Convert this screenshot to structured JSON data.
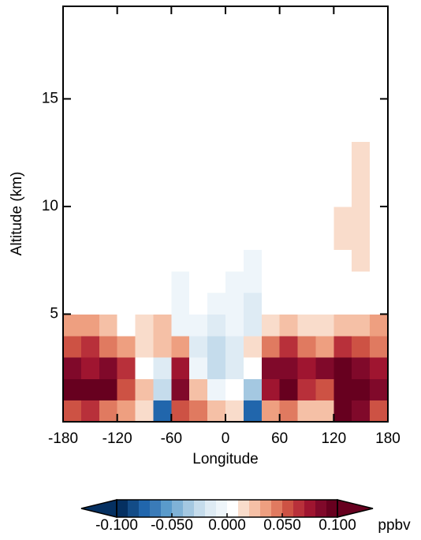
{
  "chart_data": {
    "type": "heatmap",
    "x_label": "Longitude",
    "y_label": "Altitude (km)",
    "xlim": [
      -180,
      180
    ],
    "ylim": [
      0,
      19.3
    ],
    "xticks": [
      -180,
      -120,
      -60,
      0,
      60,
      120,
      180
    ],
    "yticks": [
      5,
      10,
      15
    ],
    "x": [
      -170,
      -150,
      -130,
      -110,
      -90,
      -70,
      -50,
      -30,
      -10,
      10,
      30,
      50,
      70,
      90,
      110,
      130,
      150,
      170
    ],
    "y": [
      0.5,
      1.5,
      2.5,
      3.5,
      4.5,
      5.5,
      6.5,
      7.5,
      8.5,
      9.5,
      10.5,
      11.5,
      12.5
    ],
    "values": [
      [
        0.05,
        0.06,
        0.04,
        0.03,
        0.01,
        -0.08,
        0.05,
        0.04,
        0.02,
        0.01,
        -0.08,
        0.03,
        0.04,
        0.02,
        0.02,
        0.09,
        0.08,
        0.05
      ],
      [
        0.09,
        0.1,
        0.09,
        0.05,
        0.02,
        -0.03,
        0.08,
        0.02,
        -0.01,
        0,
        -0.04,
        0.07,
        0.09,
        0.06,
        0.05,
        0.1,
        0.09,
        0.08
      ],
      [
        0.08,
        0.07,
        0.08,
        0.06,
        0,
        -0.02,
        0.07,
        -0.01,
        -0.03,
        -0.02,
        0,
        0.08,
        0.08,
        0.07,
        0.08,
        0.09,
        0.08,
        0.07
      ],
      [
        0.05,
        0.06,
        0.04,
        0.03,
        0.01,
        0.02,
        0.03,
        -0.02,
        -0.03,
        -0.02,
        0.01,
        0.04,
        0.06,
        0.04,
        0.03,
        0.06,
        0.05,
        0.04
      ],
      [
        0.03,
        0.03,
        0.02,
        0,
        0.01,
        0.02,
        -0.01,
        -0.01,
        -0.02,
        -0.01,
        -0.02,
        0.01,
        0.02,
        0.01,
        0.01,
        0.02,
        0.02,
        0.03
      ],
      [
        0,
        0,
        0,
        0,
        0,
        0,
        -0.01,
        0,
        -0.01,
        -0.01,
        -0.02,
        0,
        0,
        0,
        0,
        0,
        0,
        0
      ],
      [
        0,
        0,
        0,
        0,
        0,
        0,
        -0.01,
        0,
        0,
        -0.01,
        -0.01,
        0,
        0,
        0,
        0,
        0,
        0,
        0
      ],
      [
        0,
        0,
        0,
        0,
        0,
        0,
        0,
        0,
        0,
        0,
        -0.01,
        0,
        0,
        0,
        0,
        0,
        0.01,
        0
      ],
      [
        0,
        0,
        0,
        0,
        0,
        0,
        0,
        0,
        0,
        0,
        0,
        0,
        0,
        0,
        0,
        0.01,
        0.01,
        0
      ],
      [
        0,
        0,
        0,
        0,
        0,
        0,
        0,
        0,
        0,
        0,
        0,
        0,
        0,
        0,
        0,
        0.01,
        0.01,
        0
      ],
      [
        0,
        0,
        0,
        0,
        0,
        0,
        0,
        0,
        0,
        0,
        0,
        0,
        0,
        0,
        0,
        0,
        0.01,
        0
      ],
      [
        0,
        0,
        0,
        0,
        0,
        0,
        0,
        0,
        0,
        0,
        0,
        0,
        0,
        0,
        0,
        0,
        0.01,
        0
      ],
      [
        0,
        0,
        0,
        0,
        0,
        0,
        0,
        0,
        0,
        0,
        0,
        0,
        0,
        0,
        0,
        0,
        0.01,
        0
      ]
    ],
    "clim": [
      -0.1,
      0.1
    ],
    "colors": [
      "#053061",
      "#134c87",
      "#2166ac",
      "#3a7bb8",
      "#5a9bcb",
      "#7fb2d6",
      "#a4c8e1",
      "#c5dcec",
      "#deebf4",
      "#eef5fa",
      "#ffffff",
      "#f9dccb",
      "#f5c0a6",
      "#ee9f80",
      "#e07a60",
      "#cd5244",
      "#b8303a",
      "#9f1530",
      "#80092a",
      "#67001f"
    ],
    "under_color": "#053061",
    "over_color": "#67001f",
    "colorbar_ticks": [
      {
        "value": -0.1,
        "label": "-0.100"
      },
      {
        "value": -0.05,
        "label": "-0.050"
      },
      {
        "value": 0,
        "label": "0.000"
      },
      {
        "value": 0.05,
        "label": "0.050"
      },
      {
        "value": 0.1,
        "label": "0.100"
      }
    ],
    "colorbar_label": "ppbv"
  }
}
